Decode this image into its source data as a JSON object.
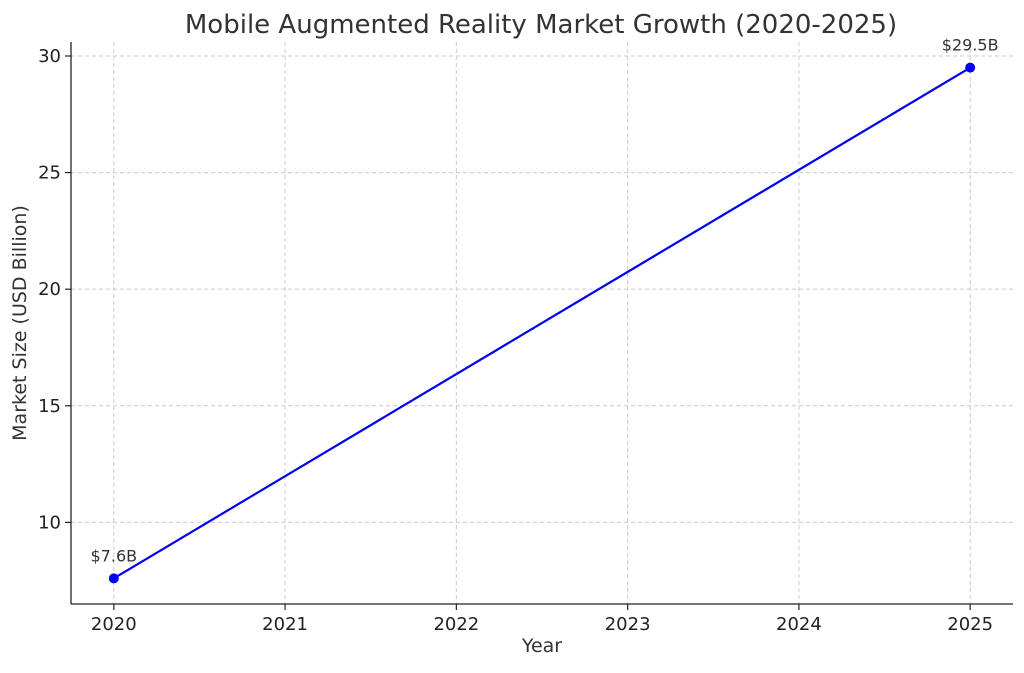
{
  "chart_data": {
    "type": "line",
    "title": "Mobile Augmented Reality Market Growth (2020-2025)",
    "xlabel": "Year",
    "ylabel": "Market Size (USD Billion)",
    "x": [
      2020,
      2025
    ],
    "x_ticks": [
      "2020",
      "2021",
      "2022",
      "2023",
      "2024",
      "2025"
    ],
    "y_ticks": [
      10,
      15,
      20,
      25,
      30
    ],
    "xlim": [
      2019.75,
      2025.25
    ],
    "ylim": [
      6.5,
      30.6
    ],
    "grid": true,
    "series": [
      {
        "values": [
          7.6,
          29.5
        ],
        "color": "#0000ee",
        "marker": "circle"
      }
    ],
    "annotations": [
      {
        "x": 2020,
        "y": 7.6,
        "text": "$7.6B"
      },
      {
        "x": 2025,
        "y": 29.5,
        "text": "$29.5B"
      }
    ]
  }
}
